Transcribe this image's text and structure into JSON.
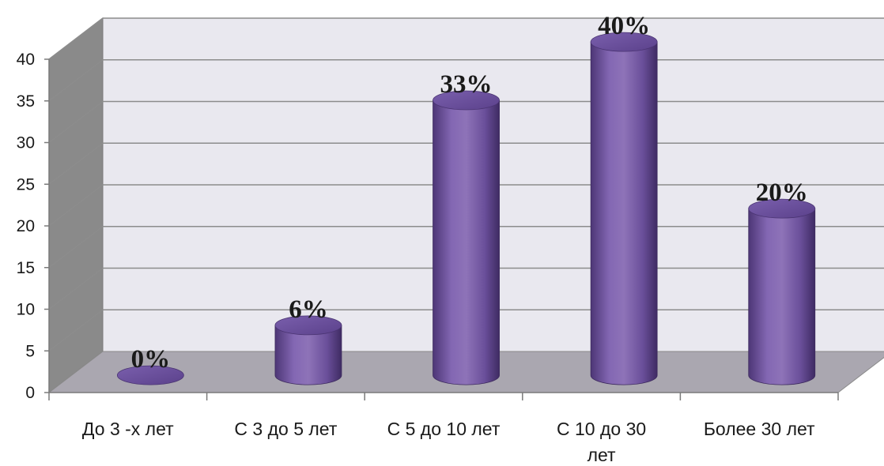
{
  "chart_data": {
    "type": "bar",
    "style": "3d-cylinder",
    "categories": [
      [
        "До 3 -х лет"
      ],
      [
        "С 3 до 5 лет"
      ],
      [
        "С 5 до 10 лет"
      ],
      [
        "С 10 до 30",
        "лет"
      ],
      [
        "Более 30 лет"
      ]
    ],
    "values": [
      0,
      6,
      33,
      40,
      20
    ],
    "data_labels": [
      "0%",
      "6%",
      "33%",
      "40%",
      "20%"
    ],
    "y_ticks": [
      "0",
      "5",
      "10",
      "15",
      "20",
      "25",
      "30",
      "35",
      "40"
    ],
    "ylim": [
      0,
      40
    ],
    "grid": true,
    "legend": "none",
    "colors": {
      "bar_light": "#8e73b8",
      "bar_mid": "#7257a3",
      "bar_dark": "#4a3472",
      "bar_top": "#6a4f9a",
      "back_wall": "#e9e8ef",
      "side_wall": "#8a8a8a",
      "floor": "#aaa7b0",
      "grid": "#8c8c8c"
    }
  }
}
